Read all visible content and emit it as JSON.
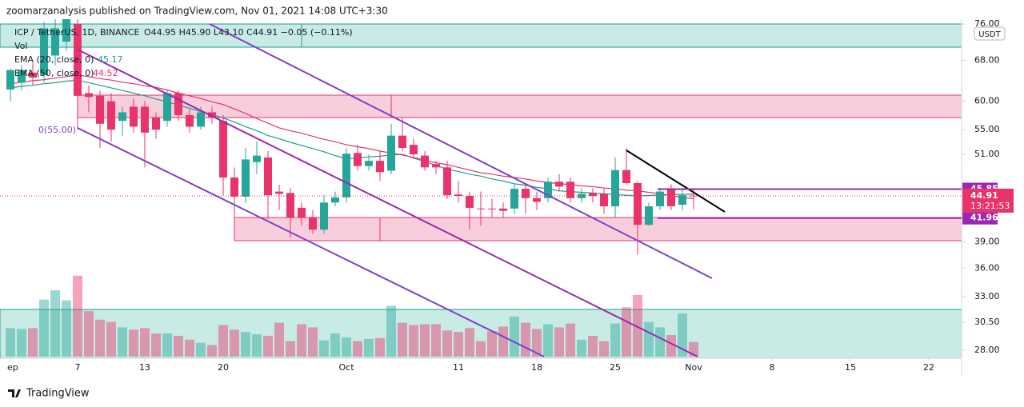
{
  "chart_data": {
    "type": "candlestick",
    "header": "zoomarzanalysis published on TradingView.com, Nov 01, 2021 14:08 UTC+3:30",
    "symbol": "ICP / TetherUS, 1D, BINANCE",
    "ohlc_legend": "O44.95 H45.90 L43.10 C44.91 −0.05 (−0.11%)",
    "currency": "USDT",
    "fib_label": "0(55.00)",
    "brand": "TradingView",
    "x": [
      "2021-09-01",
      "2021-09-02",
      "2021-09-03",
      "2021-09-04",
      "2021-09-05",
      "2021-09-06",
      "2021-09-07",
      "2021-09-08",
      "2021-09-09",
      "2021-09-10",
      "2021-09-11",
      "2021-09-12",
      "2021-09-13",
      "2021-09-14",
      "2021-09-15",
      "2021-09-16",
      "2021-09-17",
      "2021-09-18",
      "2021-09-19",
      "2021-09-20",
      "2021-09-21",
      "2021-09-22",
      "2021-09-23",
      "2021-09-24",
      "2021-09-25",
      "2021-09-26",
      "2021-09-27",
      "2021-09-28",
      "2021-09-29",
      "2021-09-30",
      "2021-10-01",
      "2021-10-02",
      "2021-10-03",
      "2021-10-04",
      "2021-10-05",
      "2021-10-06",
      "2021-10-07",
      "2021-10-08",
      "2021-10-09",
      "2021-10-10",
      "2021-10-11",
      "2021-10-12",
      "2021-10-13",
      "2021-10-14",
      "2021-10-15",
      "2021-10-16",
      "2021-10-17",
      "2021-10-18",
      "2021-10-19",
      "2021-10-20",
      "2021-10-21",
      "2021-10-22",
      "2021-10-23",
      "2021-10-24",
      "2021-10-25",
      "2021-10-26",
      "2021-10-27",
      "2021-10-28",
      "2021-10-29",
      "2021-10-30",
      "2021-10-31",
      "2021-11-01"
    ],
    "open": [
      62.2,
      63.5,
      65.5,
      65.0,
      69.0,
      72.0,
      76.0,
      61.5,
      61.0,
      60.0,
      56.5,
      59.0,
      59.0,
      57.0,
      56.5,
      61.5,
      57.5,
      55.5,
      58.0,
      56.5,
      47.5,
      44.8,
      49.8,
      50.5,
      45.5,
      45.3,
      43.3,
      42.0,
      40.5,
      44.0,
      44.7,
      51.2,
      49.2,
      50.0,
      48.5,
      54.0,
      52.5,
      50.8,
      49.5,
      49.0,
      45.1,
      44.9,
      43.2,
      43.2,
      43.2,
      43.2,
      45.9,
      44.6,
      44.6,
      46.9,
      46.9,
      44.6,
      45.3,
      45.2,
      43.5,
      48.6,
      46.7,
      41.1,
      43.5,
      45.8,
      43.7,
      44.95
    ],
    "high": [
      66.3,
      67.0,
      67.5,
      76.5,
      80.0,
      82.0,
      82.0,
      63.0,
      62.0,
      61.5,
      59.0,
      60.5,
      60.0,
      58.0,
      62.0,
      62.0,
      58.5,
      59.0,
      59.0,
      57.5,
      49.0,
      52.0,
      53.0,
      51.5,
      46.5,
      46.0,
      44.0,
      43.0,
      45.0,
      45.5,
      52.0,
      52.5,
      51.0,
      51.5,
      56.0,
      57.0,
      53.5,
      51.5,
      50.0,
      50.0,
      47.0,
      45.5,
      45.5,
      44.5,
      44.0,
      46.5,
      46.5,
      45.5,
      47.5,
      48.0,
      47.5,
      46.0,
      46.0,
      46.0,
      50.5,
      52.0,
      47.0,
      44.0,
      46.0,
      46.5,
      46.0,
      45.9
    ],
    "low": [
      60.0,
      62.0,
      63.0,
      63.5,
      67.0,
      70.0,
      55.0,
      58.0,
      52.0,
      53.0,
      54.0,
      54.5,
      49.0,
      53.5,
      55.5,
      56.5,
      54.5,
      55.0,
      56.0,
      45.0,
      41.5,
      44.0,
      48.0,
      41.8,
      43.0,
      39.5,
      41.0,
      40.0,
      40.0,
      43.5,
      44.0,
      48.5,
      48.5,
      47.0,
      48.0,
      51.5,
      50.5,
      48.5,
      48.0,
      44.5,
      44.0,
      40.5,
      41.0,
      42.0,
      42.0,
      42.5,
      42.5,
      43.0,
      44.0,
      45.5,
      44.0,
      44.0,
      44.0,
      42.5,
      42.0,
      46.5,
      37.5,
      41.0,
      43.0,
      43.0,
      43.0,
      43.1
    ],
    "close": [
      66.0,
      66.0,
      64.5,
      75.0,
      75.0,
      80.0,
      61.0,
      60.8,
      56.0,
      55.0,
      58.0,
      55.5,
      54.5,
      55.0,
      61.5,
      57.5,
      55.5,
      58.0,
      57.0,
      47.5,
      44.8,
      50.2,
      50.8,
      45.0,
      45.2,
      42.0,
      42.0,
      40.5,
      44.0,
      44.7,
      51.1,
      49.2,
      50.0,
      48.3,
      54.0,
      52.0,
      51.0,
      49.0,
      49.0,
      45.0,
      44.9,
      43.3,
      43.1,
      43.1,
      42.9,
      45.9,
      44.6,
      44.1,
      46.9,
      46.2,
      44.6,
      45.2,
      44.9,
      43.5,
      48.6,
      46.7,
      41.1,
      43.5,
      45.5,
      43.5,
      45.0,
      44.91
    ],
    "up_color": "#26a69a",
    "down_color": "#e8336b",
    "overlays": [
      {
        "name": "EMA (20, close, 0)",
        "last": 45.17,
        "color": "#1e9c8c",
        "values": [
          62.5,
          62.8,
          63.0,
          63.3,
          63.5,
          63.8,
          64.0,
          63.5,
          63.0,
          62.5,
          62.0,
          61.5,
          61.0,
          60.4,
          59.9,
          59.3,
          58.7,
          58.1,
          57.6,
          57.0,
          56.3,
          55.5,
          54.8,
          54.0,
          53.5,
          52.9,
          52.4,
          51.9,
          51.4,
          50.8,
          50.3,
          50.4,
          50.6,
          50.7,
          50.9,
          51.0,
          50.4,
          49.9,
          49.3,
          48.7,
          48.4,
          48.0,
          47.7,
          47.3,
          47.0,
          46.6,
          46.4,
          46.1,
          45.9,
          45.6,
          45.5,
          45.4,
          45.3,
          45.2,
          45.1,
          45.0,
          44.9,
          44.96,
          45.01,
          45.07,
          45.12,
          45.17
        ]
      },
      {
        "name": "EMA (50, close, 0)",
        "last": 44.52,
        "color": "#e8336b",
        "values": [
          63.3,
          63.6,
          63.9,
          64.1,
          64.4,
          64.7,
          65.0,
          64.7,
          64.3,
          64.0,
          63.6,
          63.3,
          62.9,
          62.6,
          62.1,
          61.5,
          61.0,
          60.5,
          59.9,
          59.4,
          58.6,
          57.8,
          56.9,
          56.1,
          55.3,
          54.8,
          54.4,
          53.9,
          53.4,
          53.0,
          52.5,
          52.2,
          51.9,
          51.5,
          51.2,
          50.9,
          50.5,
          50.1,
          49.7,
          49.4,
          49.0,
          48.6,
          48.2,
          48.0,
          47.7,
          47.5,
          47.3,
          47.0,
          46.8,
          46.6,
          46.5,
          46.3,
          46.2,
          46.0,
          45.9,
          45.7,
          45.6,
          45.4,
          45.2,
          44.95,
          44.7,
          44.52
        ]
      }
    ],
    "volume": {
      "name": "Vol",
      "ylim": [
        0,
        110
      ],
      "values": [
        37,
        36,
        37,
        74,
        86,
        73,
        105,
        59,
        48,
        45,
        38,
        35,
        37,
        30,
        30,
        27,
        22,
        18,
        15,
        41,
        35,
        32,
        29,
        27,
        44,
        20,
        42,
        38,
        21,
        30,
        25,
        20,
        23,
        24,
        66,
        44,
        41,
        42,
        42,
        34,
        32,
        37,
        20,
        33,
        39,
        52,
        44,
        36,
        42,
        38,
        43,
        22,
        27,
        20,
        43,
        64,
        80,
        45,
        38,
        28,
        56,
        19
      ]
    },
    "log_scale": true,
    "ylim": [
      28,
      76
    ],
    "yticks": [
      {
        "value": 76,
        "label": "76.00"
      },
      {
        "value": 68,
        "label": "68.00"
      },
      {
        "value": 60,
        "label": "60.00"
      },
      {
        "value": 55,
        "label": "55.00"
      },
      {
        "value": 51,
        "label": "51.00"
      },
      {
        "value": 39,
        "label": "39.00"
      },
      {
        "value": 36,
        "label": "36.00"
      },
      {
        "value": 33,
        "label": "33.00"
      },
      {
        "value": 30.5,
        "label": "30.50"
      },
      {
        "value": 28,
        "label": "28.00"
      }
    ],
    "price_levels": [
      {
        "value": 45.85,
        "color": "#9c27b0"
      },
      {
        "value": 41.96,
        "color": "#9c27b0"
      }
    ],
    "last_price": {
      "value": 44.91,
      "countdown": "13:21:53",
      "color": "#e8336b"
    },
    "xlim": [
      "2021-08-31",
      "2021-11-24"
    ],
    "xticks": [
      {
        "value": "2021-09-01",
        "label": "ep"
      },
      {
        "value": "2021-09-07",
        "label": "7"
      },
      {
        "value": "2021-09-13",
        "label": "13"
      },
      {
        "value": "2021-09-20",
        "label": "20"
      },
      {
        "value": "2021-10-01",
        "label": "Oct"
      },
      {
        "value": "2021-10-11",
        "label": "11"
      },
      {
        "value": "2021-10-18",
        "label": "18"
      },
      {
        "value": "2021-10-25",
        "label": "25"
      },
      {
        "value": "2021-11-01",
        "label": "Nov"
      },
      {
        "value": "2021-11-08",
        "label": "8"
      },
      {
        "value": "2021-11-15",
        "label": "15"
      },
      {
        "value": "2021-11-22",
        "label": "22"
      }
    ]
  }
}
